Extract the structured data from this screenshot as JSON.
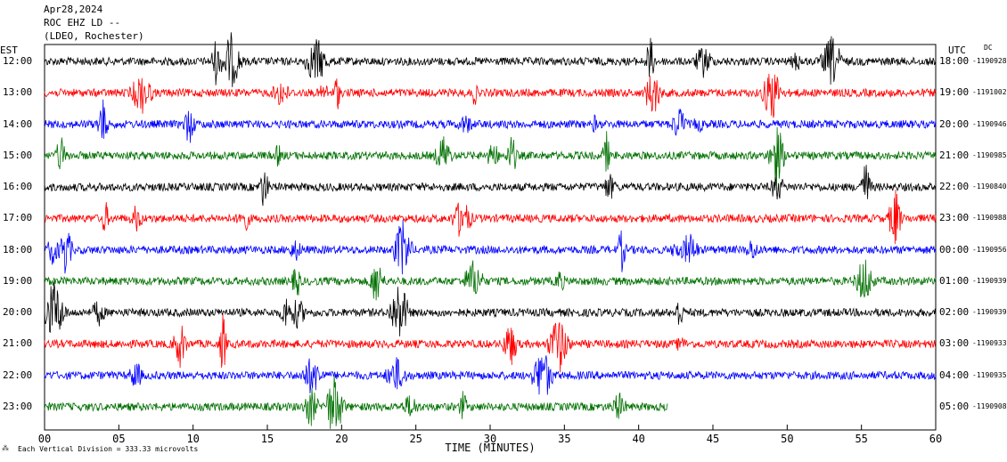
{
  "header": {
    "date": "Apr28,2024",
    "station": "ROC EHZ LD --",
    "network": "(LDEO, Rochester)"
  },
  "left_axis_title": "EST",
  "right_axis_title": "UTC",
  "dc_label": "DC",
  "footer_note": "Each Vertical Division = 333.33 microvolts",
  "chart_data": {
    "type": "line",
    "title": "ROC EHZ LD -- Apr28,2024",
    "xlabel": "TIME (MINUTES)",
    "xlim": [
      0,
      60
    ],
    "x_ticks": [
      "00",
      "05",
      "10",
      "15",
      "20",
      "25",
      "30",
      "35",
      "40",
      "45",
      "50",
      "55",
      "60"
    ],
    "trace_colors": [
      "#000000",
      "#ff0000",
      "#0000ff",
      "#007000"
    ],
    "rows": [
      {
        "est": "12:00",
        "utc": "18:00",
        "dc": "-1190928"
      },
      {
        "est": "13:00",
        "utc": "19:00",
        "dc": "-1191002"
      },
      {
        "est": "14:00",
        "utc": "20:00",
        "dc": "-1190946"
      },
      {
        "est": "15:00",
        "utc": "21:00",
        "dc": "-1190985"
      },
      {
        "est": "16:00",
        "utc": "22:00",
        "dc": "-1190840"
      },
      {
        "est": "17:00",
        "utc": "23:00",
        "dc": "-1190988"
      },
      {
        "est": "18:00",
        "utc": "00:00",
        "dc": "-1190956"
      },
      {
        "est": "19:00",
        "utc": "01:00",
        "dc": "-1190939"
      },
      {
        "est": "20:00",
        "utc": "02:00",
        "dc": "-1190939"
      },
      {
        "est": "21:00",
        "utc": "03:00",
        "dc": "-1190933"
      },
      {
        "est": "22:00",
        "utc": "04:00",
        "dc": "-1190935"
      },
      {
        "est": "23:00",
        "utc": "05:00",
        "dc": "-1190908"
      }
    ]
  }
}
